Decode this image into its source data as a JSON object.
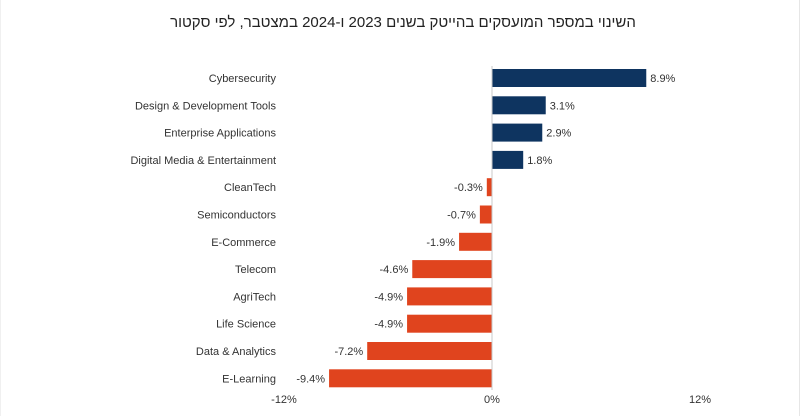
{
  "chart_data": {
    "type": "bar",
    "orientation": "horizontal",
    "title": "השינוי במספר המועסקים בהייטק בשנים 2023 ו-2024 במצטבר, לפי סקטור",
    "categories": [
      "Cybersecurity",
      "Design & Development Tools",
      "Enterprise Applications",
      "Digital Media & Entertainment",
      "CleanTech",
      "Semiconductors",
      "E-Commerce",
      "Telecom",
      "AgriTech",
      "Life Science",
      "Data & Analytics",
      "E-Learning"
    ],
    "values": [
      8.9,
      3.1,
      2.9,
      1.8,
      -0.3,
      -0.7,
      -1.9,
      -4.6,
      -4.9,
      -4.9,
      -7.2,
      -9.4
    ],
    "value_labels": [
      "8.9%",
      "3.1%",
      "2.9%",
      "1.8%",
      "-0.3%",
      "-0.7%",
      "-1.9%",
      "-4.6%",
      "-4.9%",
      "-4.9%",
      "-7.2%",
      "-9.4%"
    ],
    "xlim": [
      -12,
      12
    ],
    "x_ticks": [
      -12,
      0,
      12
    ],
    "x_tick_labels": [
      "-12%",
      "0%",
      "12%"
    ],
    "xlabel": "",
    "ylabel": "",
    "grid": false,
    "legend": "none",
    "colors": {
      "positive": "#0e3460",
      "negative": "#e0441e",
      "axis": "#c8c8c8"
    }
  }
}
